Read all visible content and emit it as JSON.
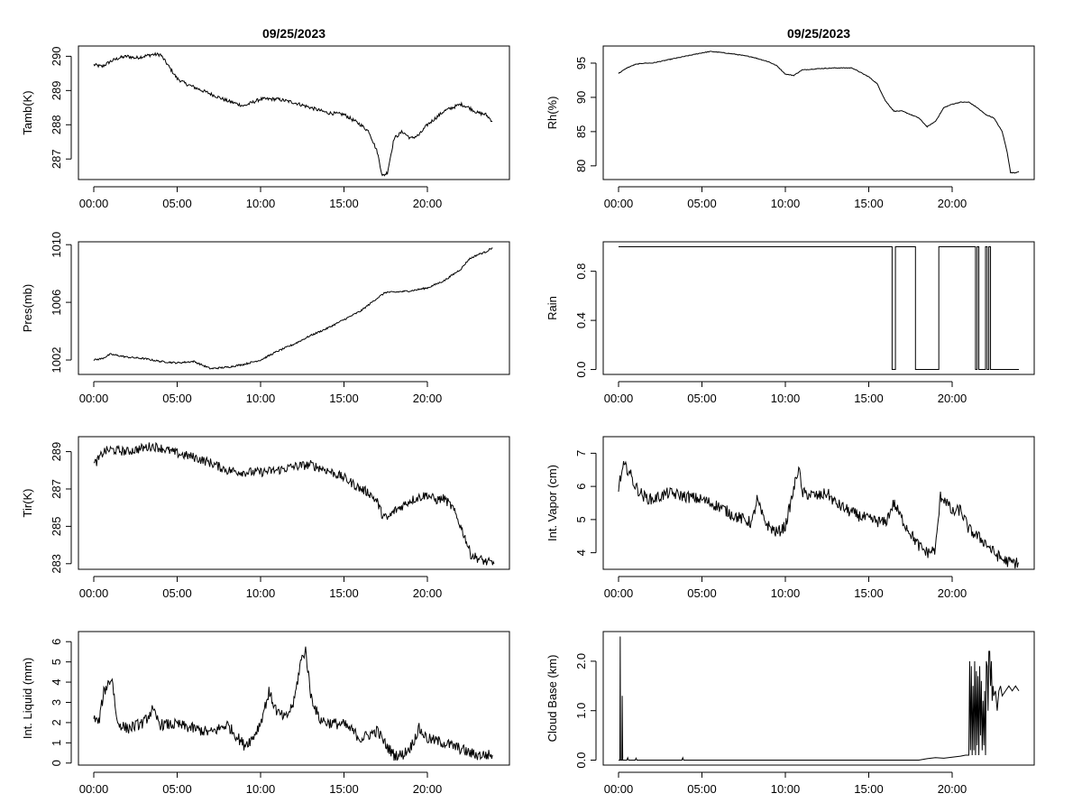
{
  "figure_title": "09/25/2023",
  "chart_data": [
    {
      "type": "line",
      "title": "09/25/2023",
      "xlabel": "",
      "ylabel": "Tamb(K)",
      "x_ticks": [
        "00:00",
        "05:00",
        "10:00",
        "15:00",
        "20:00"
      ],
      "x_range_hours": [
        0,
        24
      ],
      "ylim": [
        286.4,
        290.3
      ],
      "y_ticks": [
        "287",
        "288",
        "289",
        "290"
      ],
      "noise": 0.05,
      "series": [
        {
          "name": "Tamb(K)",
          "x": [
            0,
            0.5,
            1,
            1.5,
            2,
            2.5,
            3,
            3.5,
            4,
            4.5,
            5,
            5.5,
            6,
            7,
            8,
            9,
            10,
            11,
            12,
            13,
            14,
            15,
            16,
            16.5,
            17,
            17.3,
            17.6,
            18,
            18.5,
            19,
            19.5,
            20,
            20.5,
            21,
            21.5,
            22,
            22.5,
            23,
            23.5,
            23.9
          ],
          "y": [
            289.75,
            289.7,
            289.85,
            289.95,
            290.0,
            289.95,
            290.0,
            290.05,
            290.05,
            289.7,
            289.35,
            289.2,
            289.1,
            288.9,
            288.7,
            288.55,
            288.75,
            288.75,
            288.65,
            288.5,
            288.35,
            288.3,
            288.0,
            287.8,
            287.2,
            286.5,
            286.6,
            287.6,
            287.8,
            287.6,
            287.7,
            288.0,
            288.2,
            288.4,
            288.5,
            288.6,
            288.5,
            288.35,
            288.3,
            288.1
          ]
        }
      ]
    },
    {
      "type": "line",
      "title": "09/25/2023",
      "xlabel": "",
      "ylabel": "Rh(%)",
      "x_ticks": [
        "00:00",
        "05:00",
        "10:00",
        "15:00",
        "20:00"
      ],
      "x_range_hours": [
        0,
        24
      ],
      "ylim": [
        78,
        97.5
      ],
      "y_ticks": [
        "80",
        "85",
        "90",
        "95"
      ],
      "noise": 0.05,
      "series": [
        {
          "name": "Rh(%)",
          "x": [
            0,
            0.5,
            1,
            1.5,
            2,
            3,
            4,
            5,
            5.5,
            6,
            7,
            8,
            9,
            9.5,
            10,
            10.5,
            11,
            12,
            13,
            14,
            15,
            15.5,
            16,
            16.5,
            17,
            17.5,
            18,
            18.5,
            19,
            19.5,
            20,
            20.5,
            21,
            21.5,
            22,
            22.5,
            23,
            23.3,
            23.5,
            23.8,
            24
          ],
          "y": [
            93.5,
            94.3,
            94.8,
            95.0,
            95.0,
            95.5,
            96.0,
            96.5,
            96.7,
            96.6,
            96.3,
            95.9,
            95.2,
            94.6,
            93.4,
            93.2,
            94.0,
            94.2,
            94.3,
            94.3,
            93.0,
            92.0,
            89.5,
            88.0,
            88.0,
            87.5,
            87.0,
            85.7,
            86.5,
            88.5,
            89.0,
            89.3,
            89.3,
            88.5,
            87.5,
            87.0,
            85.0,
            82.0,
            79.0,
            79.0,
            79.2
          ]
        }
      ]
    },
    {
      "type": "line",
      "title": "",
      "xlabel": "",
      "ylabel": "Pres(mb)",
      "x_ticks": [
        "00:00",
        "05:00",
        "10:00",
        "15:00",
        "20:00"
      ],
      "x_range_hours": [
        0,
        24
      ],
      "ylim": [
        1001.0,
        1010.2
      ],
      "y_ticks": [
        "1002",
        "1006",
        "1010"
      ],
      "noise": 0.06,
      "series": [
        {
          "name": "Pres(mb)",
          "x": [
            0,
            0.5,
            1,
            1.5,
            2,
            3,
            4,
            5,
            6,
            7,
            8,
            9,
            10,
            11,
            12,
            13,
            14,
            15,
            16,
            17,
            17.5,
            18,
            19,
            20,
            21,
            22,
            22.5,
            23,
            23.5,
            23.9
          ],
          "y": [
            1002.0,
            1002.1,
            1002.4,
            1002.3,
            1002.2,
            1002.1,
            1001.9,
            1001.8,
            1001.9,
            1001.4,
            1001.5,
            1001.7,
            1002.0,
            1002.6,
            1003.1,
            1003.7,
            1004.2,
            1004.8,
            1005.4,
            1006.3,
            1006.7,
            1006.7,
            1006.8,
            1007.0,
            1007.5,
            1008.3,
            1009.0,
            1009.3,
            1009.5,
            1009.8
          ]
        }
      ]
    },
    {
      "type": "line",
      "title": "",
      "xlabel": "",
      "ylabel": "Rain",
      "x_ticks": [
        "00:00",
        "05:00",
        "10:00",
        "15:00",
        "20:00"
      ],
      "x_range_hours": [
        0,
        24
      ],
      "ylim": [
        -0.04,
        1.04
      ],
      "y_ticks": [
        "0.0",
        "0.4",
        "0.8"
      ],
      "y_tick_values": [
        0.0,
        0.4,
        0.8
      ],
      "noise": 0,
      "series": [
        {
          "name": "Rain",
          "x": [
            0,
            16.4,
            16.4,
            16.6,
            16.6,
            17.8,
            17.8,
            19.2,
            19.2,
            21.4,
            21.4,
            21.5,
            21.5,
            21.6,
            21.6,
            22.0,
            22.0,
            22.1,
            22.1,
            22.2,
            22.2,
            22.3,
            22.3,
            24
          ],
          "y": [
            1,
            1,
            0,
            0,
            1,
            1,
            0,
            0,
            1,
            1,
            0,
            0,
            1,
            1,
            0,
            0,
            1,
            1,
            0,
            0,
            1,
            1,
            0,
            0
          ]
        }
      ]
    },
    {
      "type": "line",
      "title": "",
      "xlabel": "",
      "ylabel": "Tir(K)",
      "x_ticks": [
        "00:00",
        "05:00",
        "10:00",
        "15:00",
        "20:00"
      ],
      "x_range_hours": [
        0,
        24
      ],
      "ylim": [
        282.7,
        289.8
      ],
      "y_ticks": [
        "283",
        "285",
        "287",
        "289"
      ],
      "noise": 0.25,
      "series": [
        {
          "name": "Tir(K)",
          "x": [
            0,
            0.3,
            0.6,
            1,
            2,
            3,
            3.5,
            4,
            5,
            6,
            7,
            8,
            9,
            10,
            11,
            12,
            13,
            14,
            15,
            16,
            16.5,
            17,
            17.3,
            17.6,
            18,
            19,
            20,
            20.5,
            21,
            21.5,
            22,
            22.3,
            22.6,
            23,
            23.5,
            24
          ],
          "y": [
            288.3,
            288.6,
            289.0,
            289.1,
            289.0,
            289.2,
            289.3,
            289.2,
            288.9,
            288.7,
            288.4,
            288.0,
            287.9,
            287.9,
            288.0,
            288.2,
            288.3,
            288.0,
            287.6,
            287.0,
            286.8,
            286.3,
            285.6,
            285.4,
            285.8,
            286.4,
            286.7,
            286.4,
            286.5,
            286.0,
            285.0,
            284.3,
            283.5,
            283.3,
            283.1,
            283.0
          ]
        }
      ]
    },
    {
      "type": "line",
      "title": "",
      "xlabel": "",
      "ylabel": "Int. Vapor (cm)",
      "x_ticks": [
        "00:00",
        "05:00",
        "10:00",
        "15:00",
        "20:00"
      ],
      "x_range_hours": [
        0,
        24
      ],
      "ylim": [
        3.5,
        7.5
      ],
      "y_ticks": [
        "4",
        "5",
        "6",
        "7"
      ],
      "noise": 0.18,
      "series": [
        {
          "name": "Int. Vapor (cm)",
          "x": [
            0,
            0.3,
            0.6,
            1,
            1.5,
            2,
            3,
            4,
            5,
            6,
            7,
            8,
            8.3,
            8.7,
            9,
            9.5,
            10,
            10.5,
            10.8,
            11,
            12,
            12.5,
            13,
            14,
            15,
            16,
            16.5,
            17,
            17.5,
            18,
            18.5,
            19,
            19.3,
            19.6,
            20,
            20.5,
            21,
            21.5,
            22,
            22.5,
            23,
            23.5,
            24
          ],
          "y": [
            6.0,
            6.6,
            6.5,
            6.0,
            5.7,
            5.6,
            5.8,
            5.7,
            5.6,
            5.4,
            5.1,
            4.9,
            5.6,
            5.0,
            4.8,
            4.6,
            4.8,
            5.9,
            6.6,
            5.8,
            5.7,
            5.8,
            5.5,
            5.2,
            5.0,
            4.9,
            5.5,
            5.0,
            4.6,
            4.2,
            4.0,
            4.1,
            5.7,
            5.6,
            5.2,
            5.3,
            4.7,
            4.5,
            4.3,
            4.0,
            3.8,
            3.7,
            3.7
          ]
        }
      ]
    },
    {
      "type": "line",
      "title": "",
      "xlabel": "",
      "ylabel": "Int. Liquid (mm)",
      "x_ticks": [
        "00:00",
        "05:00",
        "10:00",
        "15:00",
        "20:00"
      ],
      "x_range_hours": [
        0,
        24
      ],
      "ylim": [
        -0.1,
        6.5
      ],
      "y_ticks": [
        "0",
        "1",
        "2",
        "3",
        "4",
        "5",
        "6"
      ],
      "noise": 0.28,
      "series": [
        {
          "name": "Int. Liquid (mm)",
          "x": [
            0,
            0.3,
            0.6,
            0.9,
            1.1,
            1.4,
            2,
            3,
            3.5,
            4,
            5,
            6,
            7,
            8,
            8.3,
            9,
            9.5,
            10,
            10.5,
            11,
            11.5,
            12,
            12.4,
            12.7,
            13,
            13.5,
            14,
            15,
            15.5,
            16,
            16.5,
            17,
            17.5,
            18,
            18.5,
            19,
            19.5,
            20,
            21,
            22,
            22.5,
            23,
            23.5,
            23.9
          ],
          "y": [
            2.2,
            2.0,
            3.5,
            4.0,
            4.2,
            2.0,
            1.7,
            2.0,
            2.6,
            1.9,
            1.9,
            1.7,
            1.5,
            1.9,
            1.6,
            0.9,
            1.2,
            2.0,
            3.5,
            2.5,
            2.2,
            3.0,
            5.0,
            5.6,
            3.4,
            2.2,
            2.0,
            1.9,
            1.6,
            1.2,
            1.4,
            1.6,
            0.9,
            0.4,
            0.4,
            0.8,
            1.7,
            1.2,
            1.0,
            0.7,
            0.5,
            0.4,
            0.4,
            0.4
          ]
        }
      ]
    },
    {
      "type": "line",
      "title": "",
      "xlabel": "",
      "ylabel": "Cloud Base (km)",
      "x_ticks": [
        "00:00",
        "05:00",
        "10:00",
        "15:00",
        "20:00"
      ],
      "x_range_hours": [
        0,
        24
      ],
      "ylim": [
        -0.1,
        2.6
      ],
      "y_ticks": [
        "0.0",
        "1.0",
        "2.0"
      ],
      "y_tick_values": [
        0.0,
        1.0,
        2.0
      ],
      "noise": 0,
      "series": [
        {
          "name": "Cloud Base (km)",
          "x": [
            0,
            0.08,
            0.1,
            0.12,
            0.2,
            0.22,
            0.25,
            0.3,
            0.5,
            0.55,
            0.6,
            1,
            1.05,
            1.1,
            3.8,
            3.85,
            3.9,
            18,
            18.5,
            19,
            19.5,
            20,
            20.5,
            20.8,
            21.0,
            21.05,
            21.1,
            21.15,
            21.2,
            21.25,
            21.3,
            21.35,
            21.4,
            21.45,
            21.5,
            21.55,
            21.6,
            21.65,
            21.7,
            21.75,
            21.8,
            21.85,
            21.9,
            21.95,
            22.0,
            22.05,
            22.1,
            22.15,
            22.2,
            22.25,
            22.3,
            22.35,
            22.4,
            22.45,
            22.5,
            22.6,
            22.7,
            22.8,
            22.9,
            23.0,
            23.2,
            23.4,
            23.6,
            23.8,
            24
          ],
          "y": [
            0,
            0,
            2.5,
            0,
            0,
            1.3,
            0,
            0,
            0,
            0.05,
            0,
            0,
            0.04,
            0,
            0,
            0.05,
            0,
            0,
            0.03,
            0.05,
            0.04,
            0.06,
            0.08,
            0.1,
            0.1,
            2.0,
            0.2,
            1.9,
            0.1,
            1.5,
            0.2,
            2.0,
            0.1,
            1.8,
            0.3,
            1.7,
            0.1,
            1.9,
            0.5,
            1.6,
            0.2,
            1.2,
            0.3,
            1.4,
            0.1,
            2.0,
            1.9,
            1.0,
            2.2,
            2.2,
            1.5,
            2.0,
            1.2,
            1.5,
            1.3,
            1.4,
            1.0,
            1.4,
            1.5,
            1.3,
            1.4,
            1.5,
            1.4,
            1.5,
            1.4
          ]
        }
      ]
    }
  ]
}
